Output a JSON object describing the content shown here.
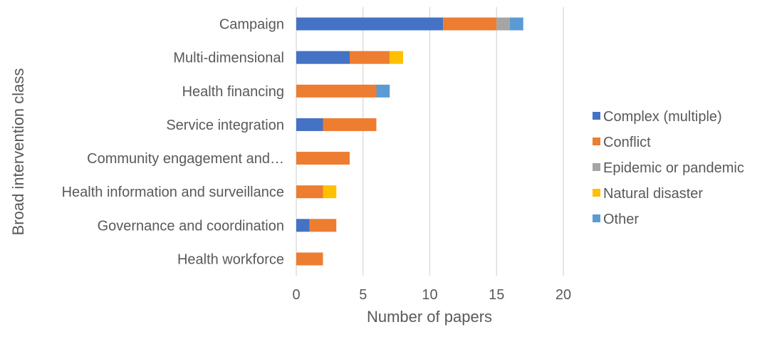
{
  "chart_data": {
    "type": "bar",
    "orientation": "horizontal",
    "stacked": true,
    "title": "",
    "xlabel": "Number of papers",
    "ylabel": "Broad intervention class",
    "xlim": [
      0,
      20
    ],
    "xticks": [
      0,
      5,
      10,
      15,
      20
    ],
    "grid": true,
    "legend_position": "right",
    "categories": [
      "Campaign",
      "Multi-dimensional",
      "Health financing",
      "Service integration",
      "Community engagement and…",
      "Health information and surveillance",
      "Governance and coordination",
      "Health workforce"
    ],
    "series": [
      {
        "name": "Complex (multiple)",
        "color": "#4472C4",
        "values": [
          11,
          4,
          0,
          2,
          0,
          0,
          1,
          0
        ]
      },
      {
        "name": "Conflict",
        "color": "#ED7D31",
        "values": [
          4,
          3,
          6,
          4,
          4,
          2,
          2,
          2
        ]
      },
      {
        "name": "Epidemic or pandemic",
        "color": "#A5A5A5",
        "values": [
          1,
          0,
          0,
          0,
          0,
          0,
          0,
          0
        ]
      },
      {
        "name": "Natural disaster",
        "color": "#FFC000",
        "values": [
          0,
          1,
          0,
          0,
          0,
          1,
          0,
          0
        ]
      },
      {
        "name": "Other",
        "color": "#5B9BD5",
        "values": [
          1,
          0,
          1,
          0,
          0,
          0,
          0,
          0
        ]
      }
    ]
  }
}
